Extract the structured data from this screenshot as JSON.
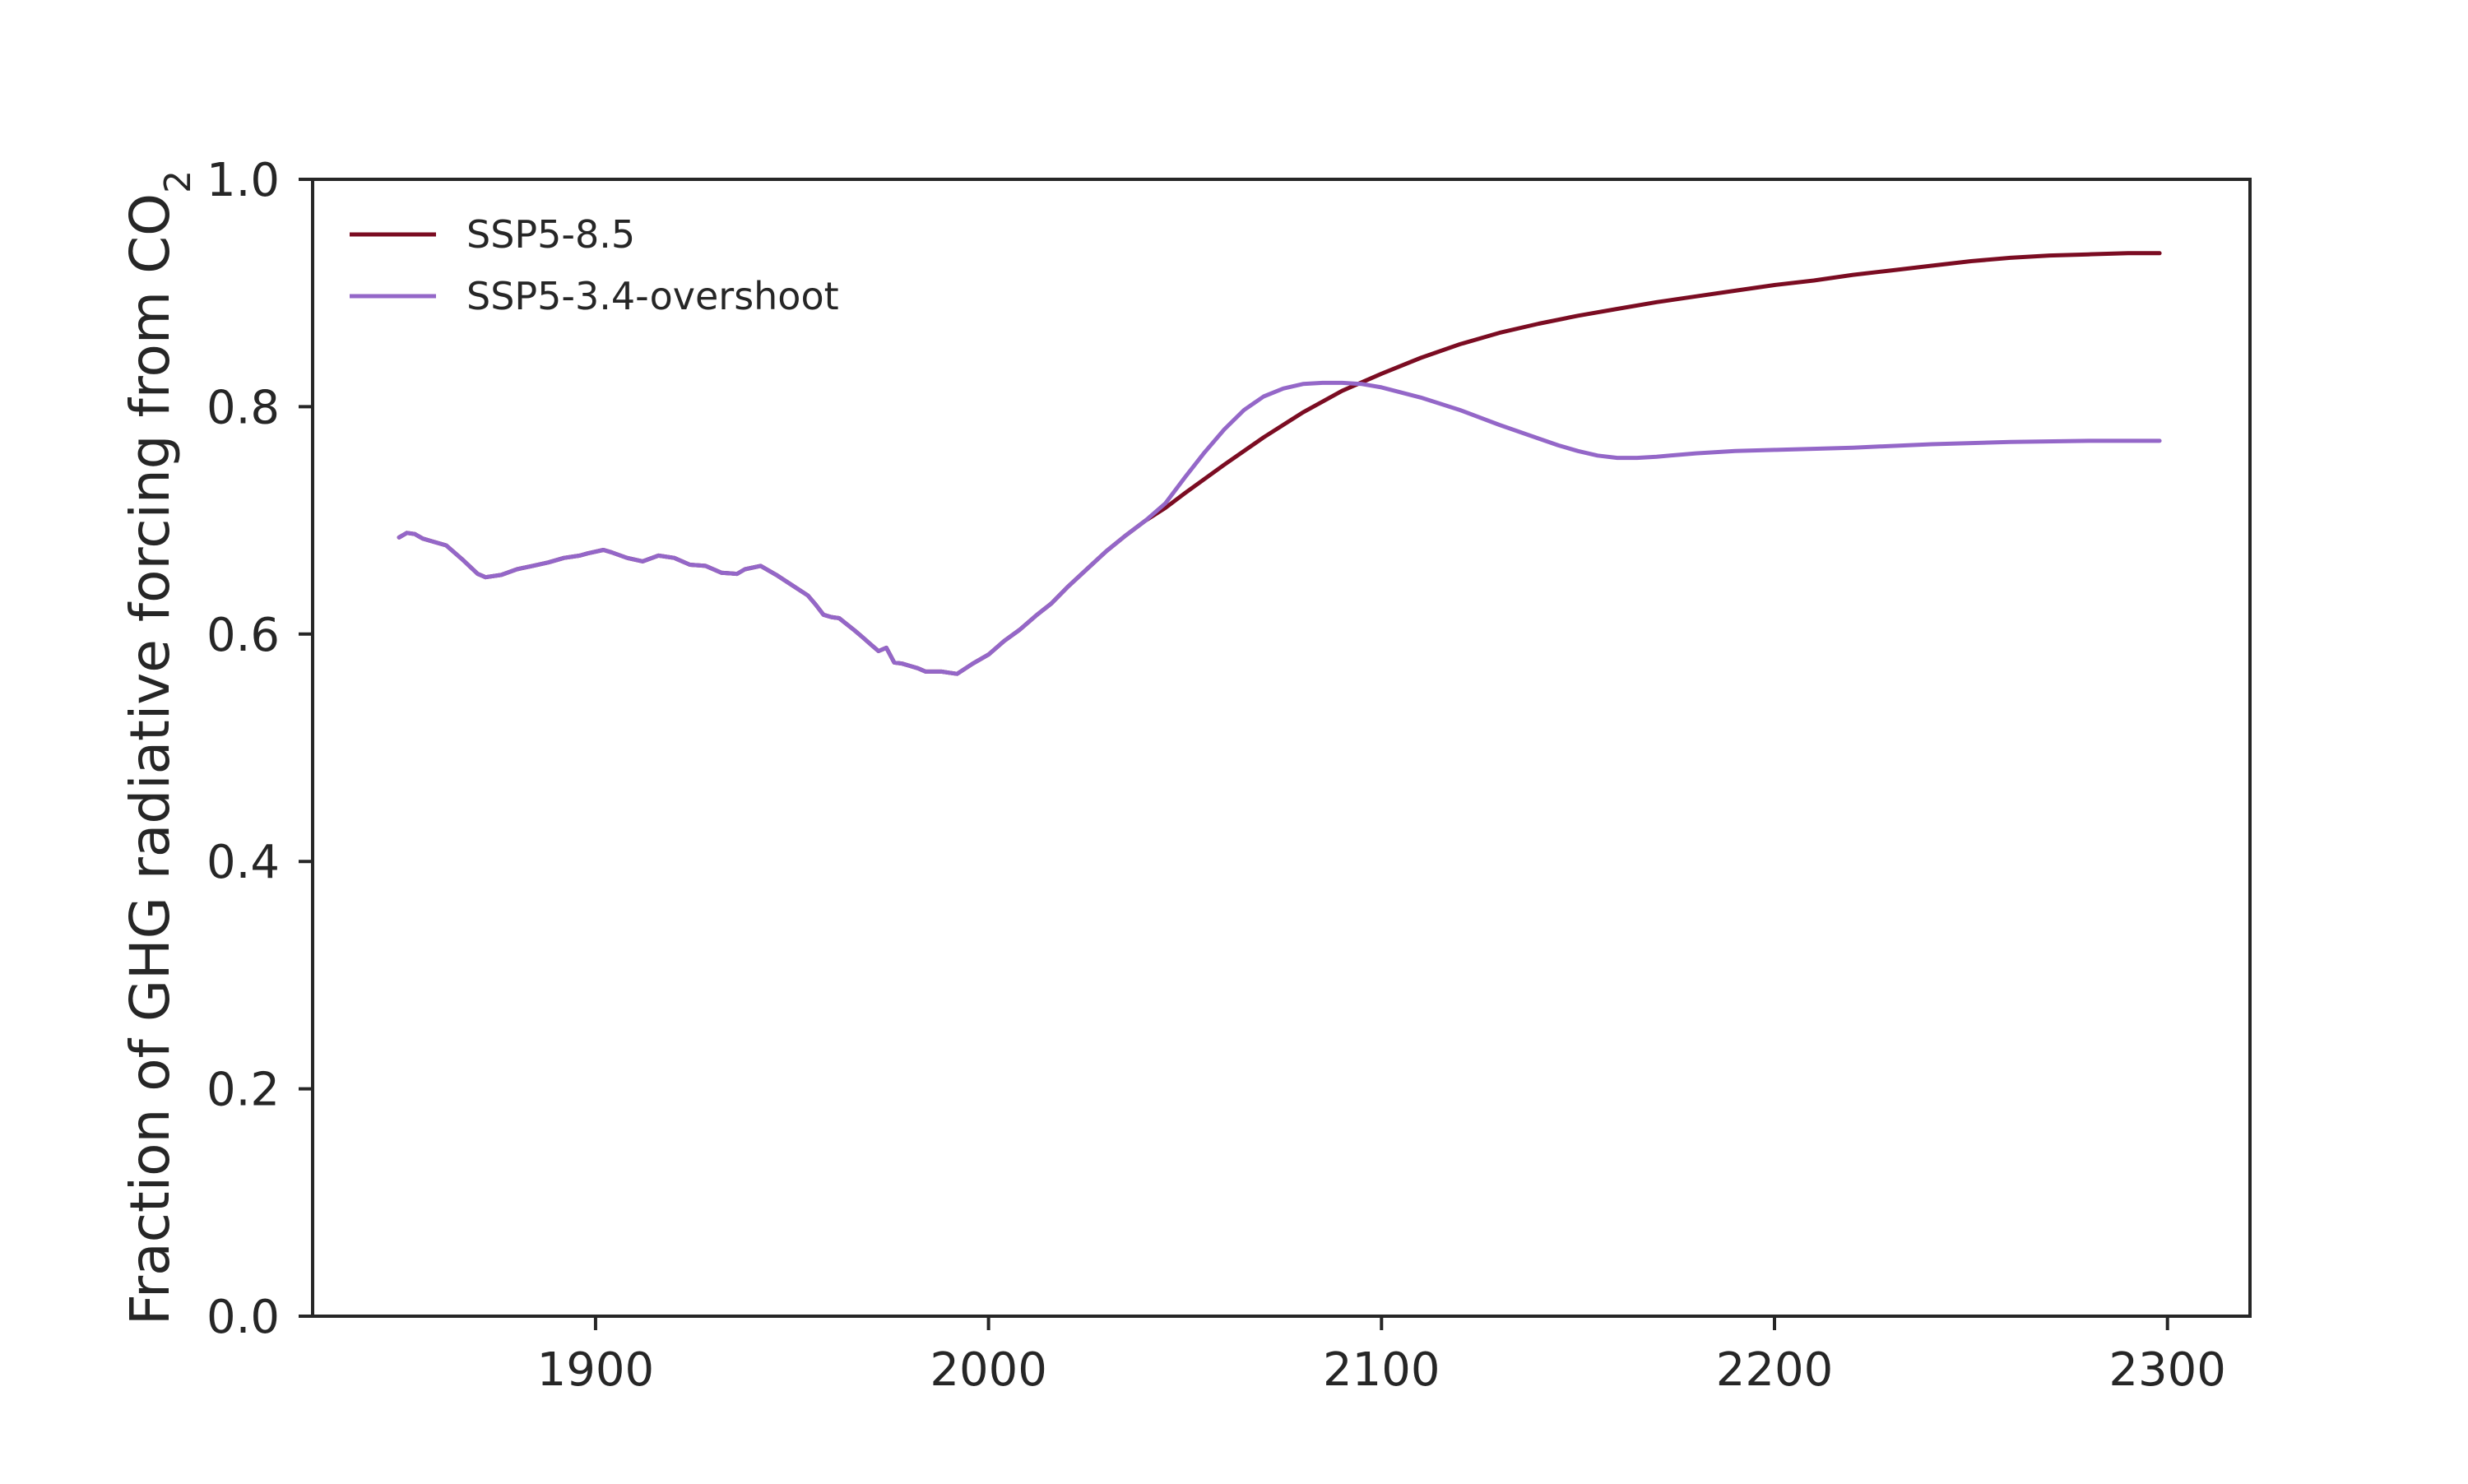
{
  "chart_data": {
    "type": "line",
    "title": "",
    "xlabel": "",
    "ylabel": {
      "text": "Fraction of GHG radiative forcing from CO",
      "subscript": "2"
    },
    "xlim": [
      1828,
      2321
    ],
    "ylim": [
      0.0,
      1.0
    ],
    "xticks": [
      1900,
      2000,
      2100,
      2200,
      2300
    ],
    "xtick_labels": [
      "1900",
      "2000",
      "2100",
      "2200",
      "2300"
    ],
    "yticks": [
      0.0,
      0.2,
      0.4,
      0.6,
      0.8,
      1.0
    ],
    "ytick_labels": [
      "0.0",
      "0.2",
      "0.4",
      "0.6",
      "0.8",
      "1.0"
    ],
    "grid": false,
    "legend_position": "top-left",
    "series": [
      {
        "name": "SSP5-8.5",
        "color": "#7b0c22",
        "points": [
          [
            1850,
            0.685
          ],
          [
            1852,
            0.689
          ],
          [
            1854,
            0.688
          ],
          [
            1856,
            0.684
          ],
          [
            1858,
            0.682
          ],
          [
            1862,
            0.678
          ],
          [
            1866,
            0.666
          ],
          [
            1870,
            0.653
          ],
          [
            1872,
            0.65
          ],
          [
            1876,
            0.652
          ],
          [
            1880,
            0.657
          ],
          [
            1884,
            0.66
          ],
          [
            1888,
            0.663
          ],
          [
            1892,
            0.667
          ],
          [
            1896,
            0.669
          ],
          [
            1898,
            0.671
          ],
          [
            1902,
            0.674
          ],
          [
            1904,
            0.672
          ],
          [
            1908,
            0.667
          ],
          [
            1912,
            0.664
          ],
          [
            1916,
            0.669
          ],
          [
            1920,
            0.667
          ],
          [
            1924,
            0.661
          ],
          [
            1928,
            0.66
          ],
          [
            1932,
            0.654
          ],
          [
            1936,
            0.653
          ],
          [
            1938,
            0.657
          ],
          [
            1942,
            0.66
          ],
          [
            1946,
            0.652
          ],
          [
            1950,
            0.643
          ],
          [
            1954,
            0.634
          ],
          [
            1956,
            0.626
          ],
          [
            1958,
            0.617
          ],
          [
            1960,
            0.615
          ],
          [
            1962,
            0.614
          ],
          [
            1966,
            0.603
          ],
          [
            1968,
            0.597
          ],
          [
            1970,
            0.591
          ],
          [
            1972,
            0.585
          ],
          [
            1974,
            0.588
          ],
          [
            1976,
            0.575
          ],
          [
            1978,
            0.574
          ],
          [
            1980,
            0.572
          ],
          [
            1982,
            0.57
          ],
          [
            1984,
            0.567
          ],
          [
            1988,
            0.567
          ],
          [
            1990,
            0.566
          ],
          [
            1992,
            0.565
          ],
          [
            1996,
            0.574
          ],
          [
            2000,
            0.582
          ],
          [
            2004,
            0.594
          ],
          [
            2008,
            0.604
          ],
          [
            2012,
            0.616
          ],
          [
            2016,
            0.627
          ],
          [
            2020,
            0.641
          ],
          [
            2025,
            0.657
          ],
          [
            2030,
            0.673
          ],
          [
            2035,
            0.687
          ],
          [
            2040,
            0.7
          ],
          [
            2045,
            0.711
          ],
          [
            2050,
            0.724
          ],
          [
            2060,
            0.749
          ],
          [
            2070,
            0.773
          ],
          [
            2080,
            0.795
          ],
          [
            2090,
            0.814
          ],
          [
            2100,
            0.829
          ],
          [
            2110,
            0.843
          ],
          [
            2120,
            0.855
          ],
          [
            2130,
            0.865
          ],
          [
            2140,
            0.873
          ],
          [
            2150,
            0.88
          ],
          [
            2160,
            0.886
          ],
          [
            2170,
            0.892
          ],
          [
            2180,
            0.897
          ],
          [
            2190,
            0.902
          ],
          [
            2200,
            0.907
          ],
          [
            2210,
            0.911
          ],
          [
            2220,
            0.916
          ],
          [
            2230,
            0.92
          ],
          [
            2240,
            0.924
          ],
          [
            2250,
            0.928
          ],
          [
            2260,
            0.931
          ],
          [
            2270,
            0.933
          ],
          [
            2280,
            0.934
          ],
          [
            2290,
            0.935
          ],
          [
            2298,
            0.935
          ]
        ]
      },
      {
        "name": "SSP5-3.4-overshoot",
        "color": "#9467c8",
        "points": [
          [
            1850,
            0.685
          ],
          [
            1852,
            0.689
          ],
          [
            1854,
            0.688
          ],
          [
            1856,
            0.684
          ],
          [
            1858,
            0.682
          ],
          [
            1862,
            0.678
          ],
          [
            1866,
            0.666
          ],
          [
            1870,
            0.653
          ],
          [
            1872,
            0.65
          ],
          [
            1876,
            0.652
          ],
          [
            1880,
            0.657
          ],
          [
            1884,
            0.66
          ],
          [
            1888,
            0.663
          ],
          [
            1892,
            0.667
          ],
          [
            1896,
            0.669
          ],
          [
            1898,
            0.671
          ],
          [
            1902,
            0.674
          ],
          [
            1904,
            0.672
          ],
          [
            1908,
            0.667
          ],
          [
            1912,
            0.664
          ],
          [
            1916,
            0.669
          ],
          [
            1920,
            0.667
          ],
          [
            1924,
            0.661
          ],
          [
            1928,
            0.66
          ],
          [
            1932,
            0.654
          ],
          [
            1936,
            0.653
          ],
          [
            1938,
            0.657
          ],
          [
            1942,
            0.66
          ],
          [
            1946,
            0.652
          ],
          [
            1950,
            0.643
          ],
          [
            1954,
            0.634
          ],
          [
            1956,
            0.626
          ],
          [
            1958,
            0.617
          ],
          [
            1960,
            0.615
          ],
          [
            1962,
            0.614
          ],
          [
            1966,
            0.603
          ],
          [
            1968,
            0.597
          ],
          [
            1970,
            0.591
          ],
          [
            1972,
            0.585
          ],
          [
            1974,
            0.588
          ],
          [
            1976,
            0.575
          ],
          [
            1978,
            0.574
          ],
          [
            1980,
            0.572
          ],
          [
            1982,
            0.57
          ],
          [
            1984,
            0.567
          ],
          [
            1988,
            0.567
          ],
          [
            1990,
            0.566
          ],
          [
            1992,
            0.565
          ],
          [
            1996,
            0.574
          ],
          [
            2000,
            0.582
          ],
          [
            2004,
            0.594
          ],
          [
            2008,
            0.604
          ],
          [
            2012,
            0.616
          ],
          [
            2016,
            0.627
          ],
          [
            2020,
            0.641
          ],
          [
            2025,
            0.657
          ],
          [
            2030,
            0.673
          ],
          [
            2035,
            0.687
          ],
          [
            2040,
            0.7
          ],
          [
            2045,
            0.715
          ],
          [
            2050,
            0.738
          ],
          [
            2055,
            0.76
          ],
          [
            2060,
            0.78
          ],
          [
            2065,
            0.797
          ],
          [
            2070,
            0.809
          ],
          [
            2075,
            0.816
          ],
          [
            2080,
            0.82
          ],
          [
            2085,
            0.821
          ],
          [
            2090,
            0.821
          ],
          [
            2095,
            0.82
          ],
          [
            2100,
            0.817
          ],
          [
            2110,
            0.808
          ],
          [
            2120,
            0.797
          ],
          [
            2130,
            0.784
          ],
          [
            2140,
            0.772
          ],
          [
            2145,
            0.766
          ],
          [
            2150,
            0.761
          ],
          [
            2155,
            0.757
          ],
          [
            2160,
            0.755
          ],
          [
            2165,
            0.755
          ],
          [
            2170,
            0.756
          ],
          [
            2180,
            0.759
          ],
          [
            2190,
            0.761
          ],
          [
            2200,
            0.762
          ],
          [
            2220,
            0.764
          ],
          [
            2240,
            0.767
          ],
          [
            2260,
            0.769
          ],
          [
            2280,
            0.77
          ],
          [
            2298,
            0.77
          ]
        ]
      }
    ]
  }
}
